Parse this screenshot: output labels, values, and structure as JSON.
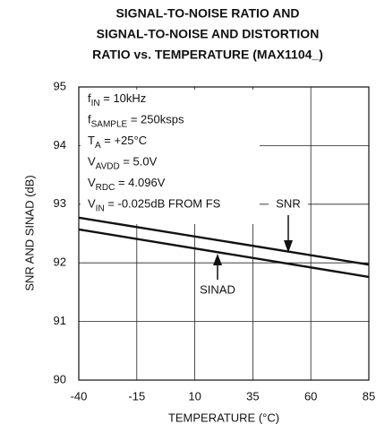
{
  "chart_data": {
    "type": "line",
    "title": [
      "SIGNAL-TO-NOISE RATIO AND",
      "SIGNAL-TO-NOISE AND DISTORTION",
      "RATIO vs. TEMPERATURE (MAX1104_)"
    ],
    "x_label": "TEMPERATURE (°C)",
    "y_label": "SNR AND SINAD (dB)",
    "x": [
      -40,
      85
    ],
    "series": [
      {
        "name": "SNR",
        "color": "#111111",
        "values": [
          92.77,
          91.97
        ]
      },
      {
        "name": "SINAD",
        "color": "#111111",
        "values": [
          92.57,
          91.76
        ]
      }
    ],
    "xlim": [
      -40,
      85
    ],
    "xticks": [
      -40,
      -15,
      10,
      35,
      60,
      85
    ],
    "ylim": [
      90,
      95
    ],
    "yticks": [
      90,
      91,
      92,
      93,
      94,
      95
    ],
    "grid": true,
    "conditions": [
      [
        "f",
        "IN",
        " = 10kHz"
      ],
      [
        "f",
        "SAMPLE",
        " = 250ksps"
      ],
      [
        "T",
        "A",
        " = +25°C"
      ],
      [
        "V",
        "AVDD",
        " = 5.0V"
      ],
      [
        "V",
        "RDC",
        " = 4.096V"
      ],
      [
        "V",
        "IN",
        " = -0.025dB FROM FS"
      ]
    ]
  }
}
